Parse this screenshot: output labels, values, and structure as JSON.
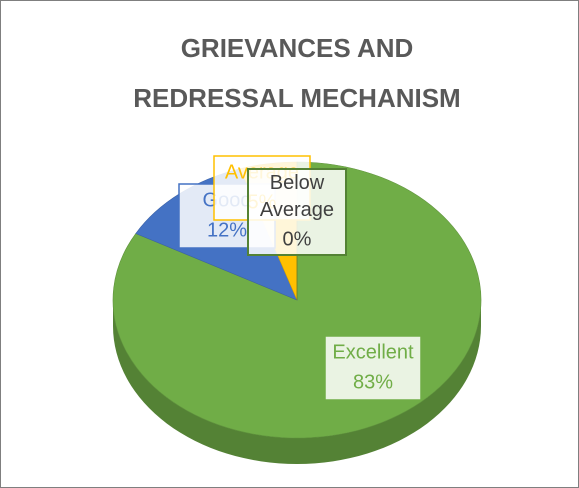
{
  "chart_data": {
    "type": "pie",
    "title": "GRIEVANCES AND REDRESSAL MECHANISM",
    "categories": [
      "Excellent",
      "Good",
      "Average",
      "Below Average"
    ],
    "values": [
      83,
      12,
      5,
      0
    ],
    "value_labels": [
      "83%",
      "12%",
      "5%",
      "0%"
    ],
    "colors": [
      "#70ad47",
      "#4472c4",
      "#ffc000",
      "#548235"
    ]
  }
}
